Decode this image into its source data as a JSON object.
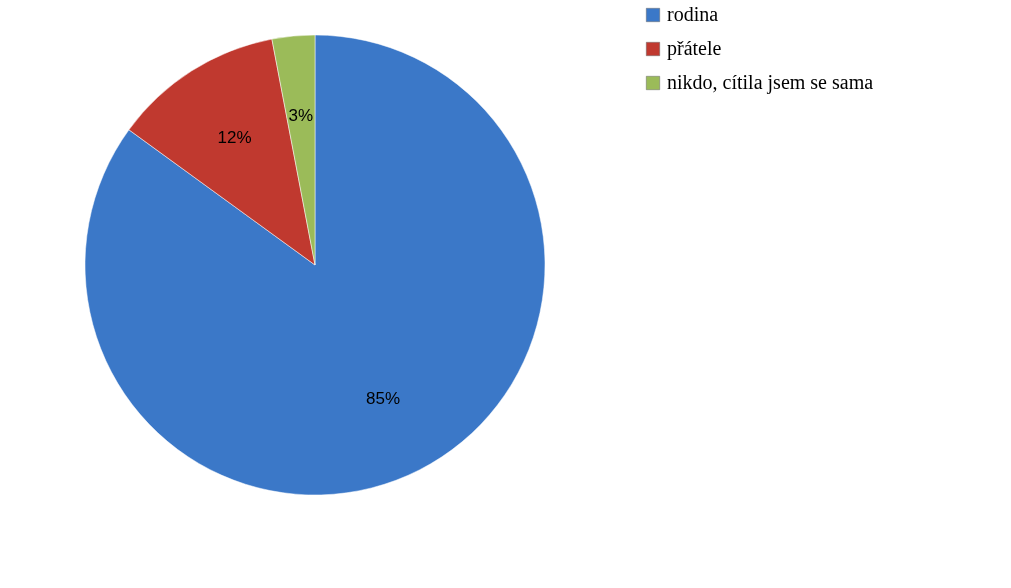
{
  "chart_data": {
    "type": "pie",
    "categories": [
      "rodina",
      "přátele",
      "nikdo, cítila jsem se sama"
    ],
    "values": [
      85,
      12,
      3
    ],
    "colors": [
      "#3b78c8",
      "#c0392f",
      "#9bbb59"
    ],
    "value_labels": [
      "85%",
      "12%",
      "3%"
    ],
    "legend": "right"
  }
}
